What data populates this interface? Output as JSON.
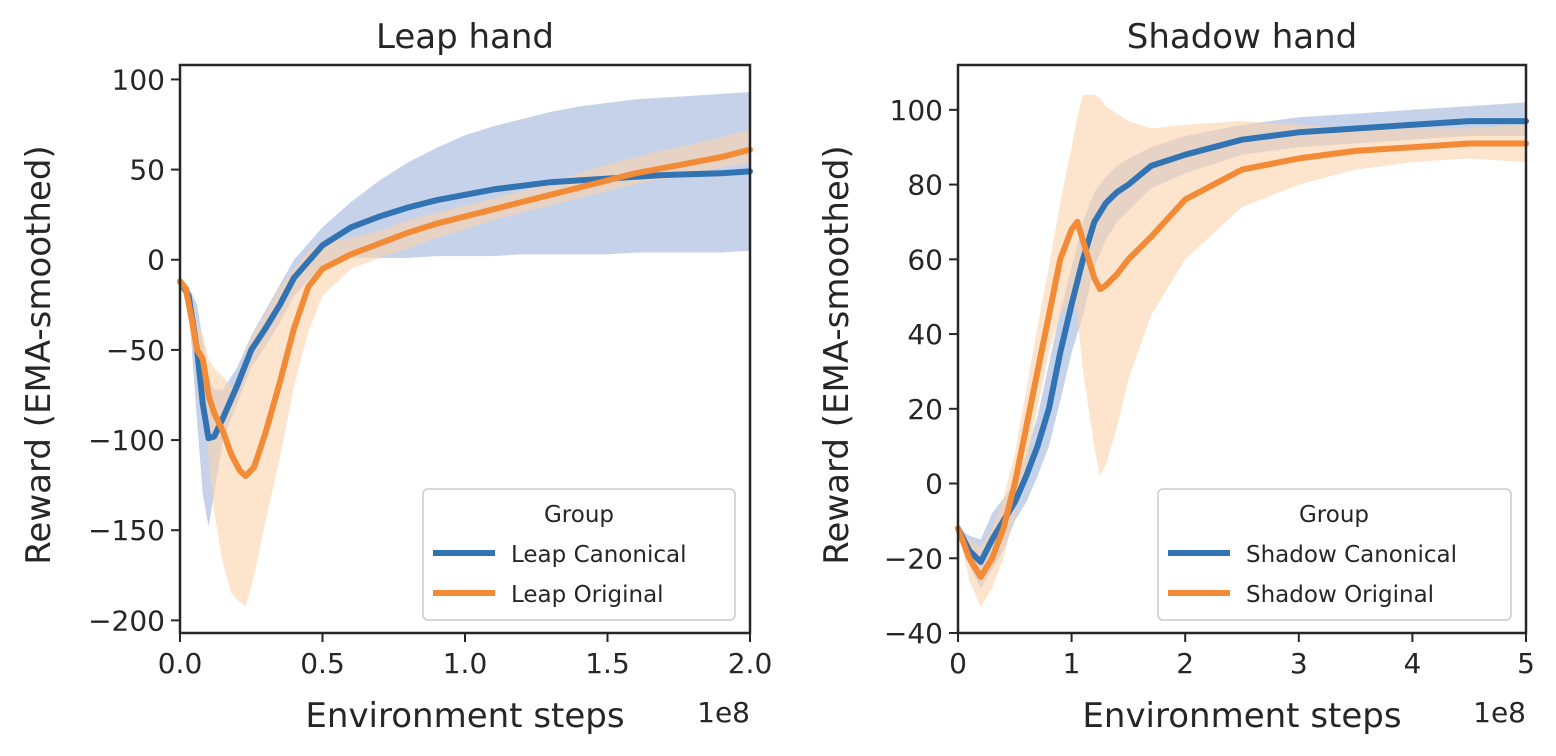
{
  "figure": {
    "background": "#ffffff"
  },
  "chart_data": [
    {
      "type": "line",
      "title": "Leap hand",
      "xlabel": "Environment steps",
      "ylabel": "Reward (EMA-smoothed)",
      "x_offset_label": "1e8",
      "xlim": [
        0.0,
        2.0
      ],
      "ylim": [
        -207,
        108
      ],
      "xticks": [
        0.0,
        0.5,
        1.0,
        1.5,
        2.0
      ],
      "xtick_labels": [
        "0.0",
        "0.5",
        "1.0",
        "1.5",
        "2.0"
      ],
      "yticks": [
        -200,
        -150,
        -100,
        -50,
        0,
        50,
        100
      ],
      "ytick_labels": [
        "−200",
        "−150",
        "−100",
        "−50",
        "0",
        "50",
        "100"
      ],
      "legend": {
        "title": "Group",
        "position": "lower-right"
      },
      "series": [
        {
          "name": "Leap Canonical",
          "color": "#3274b3",
          "band_color": "#aec0e0",
          "x": [
            0.0,
            0.03,
            0.06,
            0.08,
            0.1,
            0.12,
            0.15,
            0.2,
            0.25,
            0.3,
            0.35,
            0.4,
            0.5,
            0.6,
            0.7,
            0.8,
            0.9,
            1.0,
            1.1,
            1.2,
            1.3,
            1.4,
            1.5,
            1.6,
            1.7,
            1.8,
            1.9,
            2.0
          ],
          "y": [
            -12,
            -20,
            -50,
            -80,
            -99,
            -98,
            -88,
            -70,
            -50,
            -38,
            -25,
            -10,
            8,
            18,
            24,
            29,
            33,
            36,
            39,
            41,
            43,
            44,
            45,
            46,
            47,
            47.5,
            48,
            49
          ],
          "lower": [
            -12,
            -25,
            -90,
            -130,
            -148,
            -130,
            -100,
            -80,
            -60,
            -48,
            -35,
            -20,
            -3,
            1,
            1,
            1,
            2,
            2,
            2,
            3,
            3,
            3,
            3,
            4,
            4,
            4,
            4,
            5
          ],
          "upper": [
            -12,
            -15,
            -25,
            -45,
            -65,
            -72,
            -72,
            -60,
            -42,
            -28,
            -14,
            0,
            18,
            32,
            44,
            54,
            62,
            69,
            74,
            78,
            82,
            85,
            87,
            89,
            90,
            91,
            92,
            93
          ]
        },
        {
          "name": "Leap Original",
          "color": "#f28a36",
          "band_color": "#fbd3ae",
          "x": [
            0.0,
            0.02,
            0.04,
            0.06,
            0.08,
            0.1,
            0.12,
            0.15,
            0.18,
            0.21,
            0.23,
            0.26,
            0.3,
            0.35,
            0.4,
            0.45,
            0.5,
            0.6,
            0.7,
            0.8,
            0.9,
            1.0,
            1.1,
            1.2,
            1.3,
            1.4,
            1.5,
            1.6,
            1.7,
            1.8,
            1.9,
            2.0
          ],
          "y": [
            -12,
            -16,
            -32,
            -50,
            -55,
            -75,
            -85,
            -95,
            -108,
            -117,
            -120,
            -115,
            -96,
            -68,
            -38,
            -15,
            -5,
            3,
            9,
            15,
            20,
            24,
            28,
            32,
            36,
            40,
            44,
            48,
            51,
            54,
            57,
            61
          ],
          "lower": [
            -12,
            -20,
            -45,
            -60,
            -70,
            -110,
            -140,
            -168,
            -185,
            -190,
            -192,
            -175,
            -145,
            -110,
            -70,
            -40,
            -20,
            -5,
            1,
            6,
            12,
            17,
            22,
            26,
            30,
            34,
            38,
            42,
            45,
            48,
            51,
            54
          ],
          "upper": [
            -12,
            -12,
            -20,
            -35,
            -42,
            -55,
            -60,
            -65,
            -70,
            -70,
            -50,
            -40,
            -30,
            -15,
            -5,
            5,
            10,
            12,
            16,
            22,
            26,
            30,
            34,
            38,
            43,
            48,
            53,
            57,
            61,
            64,
            68,
            72
          ]
        }
      ]
    },
    {
      "type": "line",
      "title": "Shadow hand",
      "xlabel": "Environment steps",
      "ylabel": "Reward (EMA-smoothed)",
      "x_offset_label": "1e8",
      "xlim": [
        0,
        5
      ],
      "ylim": [
        -40,
        112
      ],
      "xticks": [
        0,
        1,
        2,
        3,
        4,
        5
      ],
      "xtick_labels": [
        "0",
        "1",
        "2",
        "3",
        "4",
        "5"
      ],
      "yticks": [
        -40,
        -20,
        0,
        20,
        40,
        60,
        80,
        100
      ],
      "ytick_labels": [
        "−40",
        "−20",
        "0",
        "20",
        "40",
        "60",
        "80",
        "100"
      ],
      "legend": {
        "title": "Group",
        "position": "lower-right"
      },
      "series": [
        {
          "name": "Shadow Canonical",
          "color": "#3274b3",
          "band_color": "#aec0e0",
          "x": [
            0.0,
            0.1,
            0.2,
            0.3,
            0.4,
            0.5,
            0.6,
            0.7,
            0.8,
            0.9,
            1.0,
            1.1,
            1.2,
            1.3,
            1.4,
            1.5,
            1.7,
            2.0,
            2.5,
            3.0,
            3.5,
            4.0,
            4.5,
            5.0
          ],
          "y": [
            -12,
            -18,
            -21,
            -15,
            -10,
            -5,
            2,
            10,
            20,
            35,
            48,
            60,
            70,
            75,
            78,
            80,
            85,
            88,
            92,
            94,
            95,
            96,
            97,
            97
          ],
          "lower": [
            -12,
            -22,
            -28,
            -23,
            -18,
            -10,
            -5,
            2,
            10,
            22,
            35,
            45,
            58,
            65,
            70,
            73,
            79,
            83,
            88,
            90,
            91,
            92,
            93,
            93
          ],
          "upper": [
            -12,
            -14,
            -15,
            -8,
            -4,
            0,
            8,
            18,
            32,
            46,
            58,
            70,
            78,
            82,
            85,
            87,
            90,
            93,
            96,
            98,
            99,
            100,
            101,
            102
          ]
        },
        {
          "name": "Shadow Original",
          "color": "#f28a36",
          "band_color": "#fbd3ae",
          "x": [
            0.0,
            0.1,
            0.2,
            0.3,
            0.4,
            0.5,
            0.6,
            0.7,
            0.8,
            0.9,
            1.0,
            1.05,
            1.1,
            1.2,
            1.25,
            1.3,
            1.4,
            1.5,
            1.7,
            2.0,
            2.5,
            3.0,
            3.5,
            4.0,
            4.5,
            5.0
          ],
          "y": [
            -12,
            -20,
            -25,
            -20,
            -12,
            0,
            15,
            30,
            45,
            60,
            68,
            70,
            65,
            55,
            52,
            53,
            56,
            60,
            66,
            76,
            84,
            87,
            89,
            90,
            91,
            91
          ],
          "lower": [
            -12,
            -26,
            -33,
            -28,
            -20,
            -8,
            5,
            20,
            35,
            45,
            50,
            45,
            30,
            10,
            2,
            5,
            15,
            28,
            45,
            60,
            74,
            80,
            84,
            86,
            87,
            86
          ],
          "upper": [
            -12,
            -15,
            -17,
            -12,
            -4,
            8,
            25,
            42,
            58,
            75,
            90,
            98,
            104,
            104,
            103,
            101,
            99,
            97,
            95,
            96,
            97,
            96,
            95,
            95,
            95,
            96
          ]
        }
      ]
    }
  ]
}
